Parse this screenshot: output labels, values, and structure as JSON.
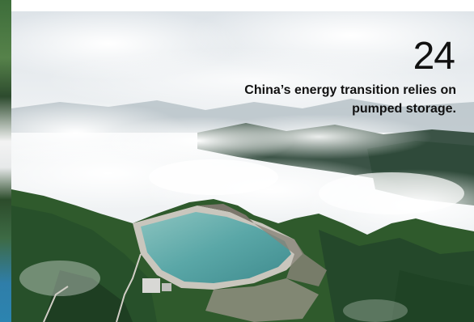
{
  "slide": {
    "number": "24",
    "caption": "China’s energy transition relies on pumped storage."
  },
  "photo": {
    "subject": "reservoir-landscape"
  },
  "colors": {
    "text": "#111111",
    "reservoir_water": "#5aa7a7",
    "forest": "#2f5a2c",
    "sky": "#e9eef1"
  }
}
